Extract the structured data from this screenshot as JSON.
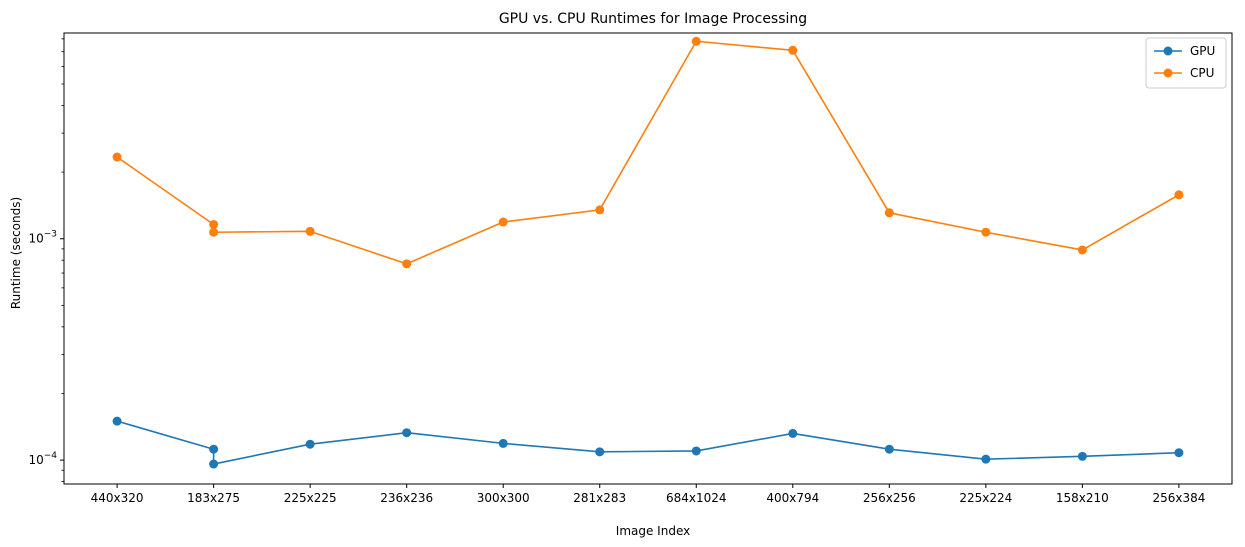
{
  "chart_data": {
    "type": "line",
    "title": "GPU vs. CPU Runtimes for Image Processing",
    "xlabel": "Image Index",
    "ylabel": "Runtime (seconds)",
    "yscale": "log",
    "ylim": [
      7.8e-05,
      0.0085
    ],
    "x": [
      0,
      1,
      1,
      2,
      3,
      4,
      5,
      6,
      7,
      8,
      9,
      10,
      11
    ],
    "x_tick_positions": [
      0,
      1,
      2,
      3,
      4,
      5,
      6,
      7,
      8,
      9,
      10,
      11
    ],
    "x_tick_labels": [
      "440x320",
      "183x275",
      "225x225",
      "236x236",
      "300x300",
      "281x283",
      "684x1024",
      "400x794",
      "256x256",
      "225x224",
      "158x210",
      "256x384"
    ],
    "y_tick_labels": [
      {
        "value": 0.0001,
        "base": "10",
        "exp": "−4"
      },
      {
        "value": 0.001,
        "base": "10",
        "exp": "−3"
      }
    ],
    "legend_position": "top-right",
    "grid": false,
    "series": [
      {
        "name": "GPU",
        "color": "#1f77b4",
        "values": [
          0.00015,
          0.000112,
          9.6e-05,
          0.000118,
          0.000133,
          0.000119,
          0.000109,
          0.00011,
          0.000132,
          0.000112,
          0.000101,
          0.000104,
          0.000108
        ]
      },
      {
        "name": "CPU",
        "color": "#ff7f0e",
        "values": [
          0.00234,
          0.00116,
          0.00107,
          0.00108,
          0.00077,
          0.00119,
          0.00135,
          0.0078,
          0.0071,
          0.00131,
          0.00107,
          0.00089,
          0.00158
        ]
      }
    ]
  }
}
